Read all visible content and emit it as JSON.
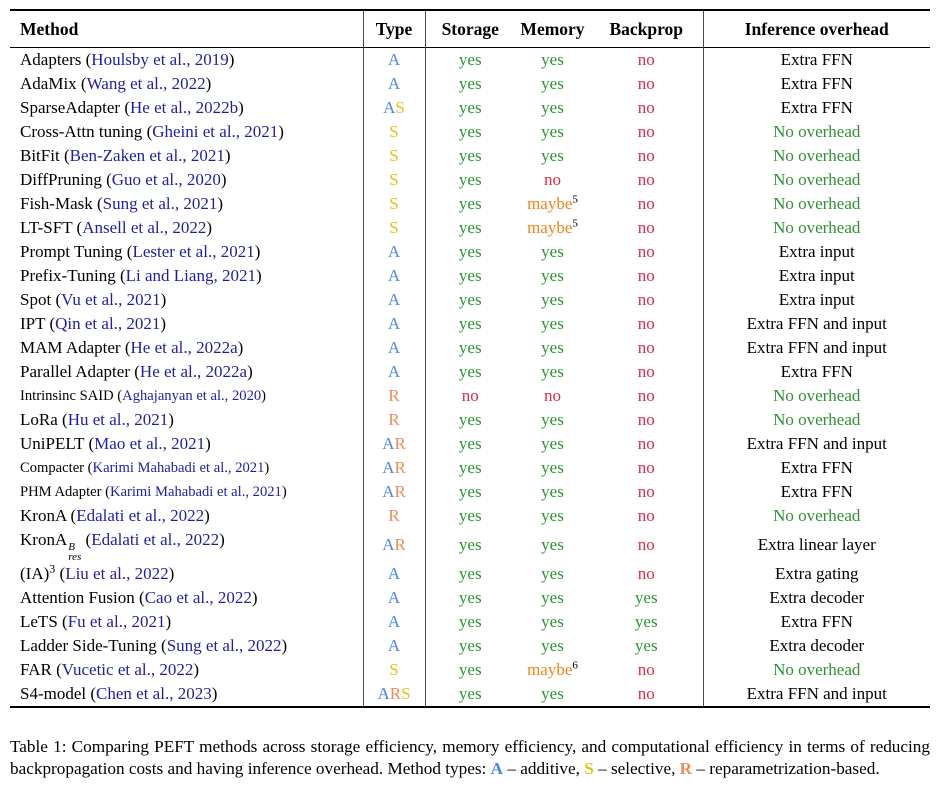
{
  "colors": {
    "additive_blue": "#4a86e8",
    "selective_yellow": "#e4c01a",
    "reparam_orange": "#ed8b59",
    "yes_green": "#2e9235",
    "no_red": "#dd2c45",
    "maybe_orange": "#f0831a",
    "citation_navy": "#1f1f9e"
  },
  "table": {
    "columns": [
      "Method",
      "Type",
      "Storage",
      "Memory",
      "Backprop",
      "Inference overhead"
    ],
    "rows": [
      {
        "method": "Adapters",
        "citation": "Houlsby et al., 2019",
        "type": "A",
        "storage": "yes",
        "memory": "yes",
        "backprop": "no",
        "overhead": "Extra FFN",
        "no_overhead": false
      },
      {
        "method": "AdaMix",
        "citation": "Wang et al., 2022",
        "type": "A",
        "storage": "yes",
        "memory": "yes",
        "backprop": "no",
        "overhead": "Extra FFN",
        "no_overhead": false
      },
      {
        "method": "SparseAdapter",
        "citation": "He et al., 2022b",
        "type": "AS",
        "storage": "yes",
        "memory": "yes",
        "backprop": "no",
        "overhead": "Extra FFN",
        "no_overhead": false
      },
      {
        "method": "Cross-Attn tuning",
        "citation": "Gheini et al., 2021",
        "type": "S",
        "storage": "yes",
        "memory": "yes",
        "backprop": "no",
        "overhead": "No overhead",
        "no_overhead": true
      },
      {
        "method": "BitFit",
        "citation": "Ben-Zaken et al., 2021",
        "type": "S",
        "storage": "yes",
        "memory": "yes",
        "backprop": "no",
        "overhead": "No overhead",
        "no_overhead": true
      },
      {
        "method": "DiffPruning",
        "citation": "Guo et al., 2020",
        "type": "S",
        "storage": "yes",
        "memory": "no",
        "backprop": "no",
        "overhead": "No overhead",
        "no_overhead": true
      },
      {
        "method": "Fish-Mask",
        "citation": "Sung et al., 2021",
        "type": "S",
        "storage": "yes",
        "memory": "maybe",
        "memory_sup": "5",
        "backprop": "no",
        "overhead": "No overhead",
        "no_overhead": true
      },
      {
        "method": "LT-SFT",
        "citation": "Ansell et al., 2022",
        "type": "S",
        "storage": "yes",
        "memory": "maybe",
        "memory_sup": "5",
        "backprop": "no",
        "overhead": "No overhead",
        "no_overhead": true
      },
      {
        "method": "Prompt Tuning",
        "citation": "Lester et al., 2021",
        "type": "A",
        "storage": "yes",
        "memory": "yes",
        "backprop": "no",
        "overhead": "Extra input",
        "no_overhead": false
      },
      {
        "method": "Prefix-Tuning",
        "citation": "Li and Liang, 2021",
        "type": "A",
        "storage": "yes",
        "memory": "yes",
        "backprop": "no",
        "overhead": "Extra input",
        "no_overhead": false
      },
      {
        "method": "Spot",
        "citation": "Vu et al., 2021",
        "type": "A",
        "storage": "yes",
        "memory": "yes",
        "backprop": "no",
        "overhead": "Extra input",
        "no_overhead": false
      },
      {
        "method": "IPT",
        "citation": "Qin et al., 2021",
        "type": "A",
        "storage": "yes",
        "memory": "yes",
        "backprop": "no",
        "overhead": "Extra FFN and input",
        "no_overhead": false
      },
      {
        "method": "MAM Adapter",
        "citation": "He et al., 2022a",
        "type": "A",
        "storage": "yes",
        "memory": "yes",
        "backprop": "no",
        "overhead": "Extra FFN and input",
        "no_overhead": false
      },
      {
        "method": "Parallel Adapter",
        "citation": "He et al., 2022a",
        "type": "A",
        "storage": "yes",
        "memory": "yes",
        "backprop": "no",
        "overhead": "Extra FFN",
        "no_overhead": false
      },
      {
        "method": "Intrinsinc SAID",
        "citation": "Aghajanyan et al., 2020",
        "type": "R",
        "storage": "no",
        "memory": "no",
        "backprop": "no",
        "overhead": "No overhead",
        "no_overhead": true,
        "small": true
      },
      {
        "method": "LoRa",
        "citation": "Hu et al., 2021",
        "type": "R",
        "storage": "yes",
        "memory": "yes",
        "backprop": "no",
        "overhead": "No overhead",
        "no_overhead": true
      },
      {
        "method": "UniPELT",
        "citation": "Mao et al., 2021",
        "type": "AR",
        "storage": "yes",
        "memory": "yes",
        "backprop": "no",
        "overhead": "Extra FFN and input",
        "no_overhead": false
      },
      {
        "method": "Compacter",
        "citation": "Karimi Mahabadi et al., 2021",
        "type": "AR",
        "storage": "yes",
        "memory": "yes",
        "backprop": "no",
        "overhead": "Extra FFN",
        "no_overhead": false,
        "small": true
      },
      {
        "method": "PHM Adapter",
        "citation": "Karimi Mahabadi et al., 2021",
        "type": "AR",
        "storage": "yes",
        "memory": "yes",
        "backprop": "no",
        "overhead": "Extra FFN",
        "no_overhead": false,
        "small": true
      },
      {
        "method": "KronA",
        "citation": "Edalati et al., 2022",
        "type": "R",
        "storage": "yes",
        "memory": "yes",
        "backprop": "no",
        "overhead": "No overhead",
        "no_overhead": true
      },
      {
        "method": "KronA",
        "method_sup": "B",
        "method_sub": "res",
        "citation": "Edalati et al., 2022",
        "type": "AR",
        "storage": "yes",
        "memory": "yes",
        "backprop": "no",
        "overhead": "Extra linear layer",
        "no_overhead": false
      },
      {
        "method": "(IA)",
        "method_sup": "3",
        "citation": "Liu et al., 2022",
        "type": "A",
        "storage": "yes",
        "memory": "yes",
        "backprop": "no",
        "overhead": "Extra gating",
        "no_overhead": false
      },
      {
        "method": "Attention Fusion",
        "citation": "Cao et al., 2022",
        "type": "A",
        "storage": "yes",
        "memory": "yes",
        "backprop": "yes",
        "overhead": "Extra decoder",
        "no_overhead": false
      },
      {
        "method": "LeTS",
        "citation": "Fu et al., 2021",
        "type": "A",
        "storage": "yes",
        "memory": "yes",
        "backprop": "yes",
        "overhead": "Extra FFN",
        "no_overhead": false
      },
      {
        "method": "Ladder Side-Tuning",
        "citation": "Sung et al., 2022",
        "type": "A",
        "storage": "yes",
        "memory": "yes",
        "backprop": "yes",
        "overhead": "Extra decoder",
        "no_overhead": false
      },
      {
        "method": "FAR",
        "citation": "Vucetic et al., 2022",
        "type": "S",
        "storage": "yes",
        "memory": "maybe",
        "memory_sup": "6",
        "backprop": "no",
        "overhead": "No overhead",
        "no_overhead": true
      },
      {
        "method": "S4-model",
        "citation": "Chen et al., 2023",
        "type": "ARS",
        "storage": "yes",
        "memory": "yes",
        "backprop": "no",
        "overhead": "Extra FFN and input",
        "no_overhead": false
      }
    ]
  },
  "caption": {
    "prefix": "Table 1: Comparing PEFT methods across storage efficiency, memory efficiency, and computational efficiency in terms of reducing backpropagation costs and having inference overhead. Method types: ",
    "legend": [
      {
        "letter": "A",
        "text": " – additive, "
      },
      {
        "letter": "S",
        "text": " – selective, "
      },
      {
        "letter": "R",
        "text": " – reparametrization-based."
      }
    ]
  }
}
